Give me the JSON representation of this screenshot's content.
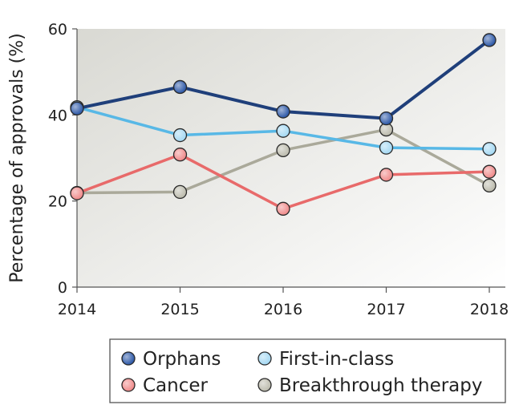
{
  "chart_data": {
    "type": "line",
    "title": "",
    "xlabel": "",
    "ylabel": "Percentage of approvals (%)",
    "x": [
      "2014",
      "2015",
      "2016",
      "2017",
      "2018"
    ],
    "xticks": [
      "2014",
      "2015",
      "2016",
      "2017",
      "2018"
    ],
    "yticks": [
      "0",
      "20",
      "40",
      "60"
    ],
    "ylim": [
      0,
      60
    ],
    "grid": false,
    "legend_position": "bottom-right",
    "series": [
      {
        "name": "Orphans",
        "color": "#1f3f7a",
        "marker": "#2f5aa8",
        "values": [
          41.5,
          46.5,
          40.8,
          39.2,
          57.4
        ]
      },
      {
        "name": "First-in-class",
        "color": "#58b8e6",
        "marker": "#a6d9f3",
        "values": [
          41.8,
          35.3,
          36.3,
          32.4,
          32.1
        ]
      },
      {
        "name": "Cancer",
        "color": "#e86a6a",
        "marker": "#f08c8c",
        "values": [
          21.8,
          30.8,
          18.2,
          26.1,
          26.8
        ]
      },
      {
        "name": "Breakthrough therapy",
        "color": "#aaa99a",
        "marker": "#bdbcae",
        "values": [
          21.9,
          22.1,
          31.8,
          36.6,
          23.6
        ]
      }
    ]
  }
}
